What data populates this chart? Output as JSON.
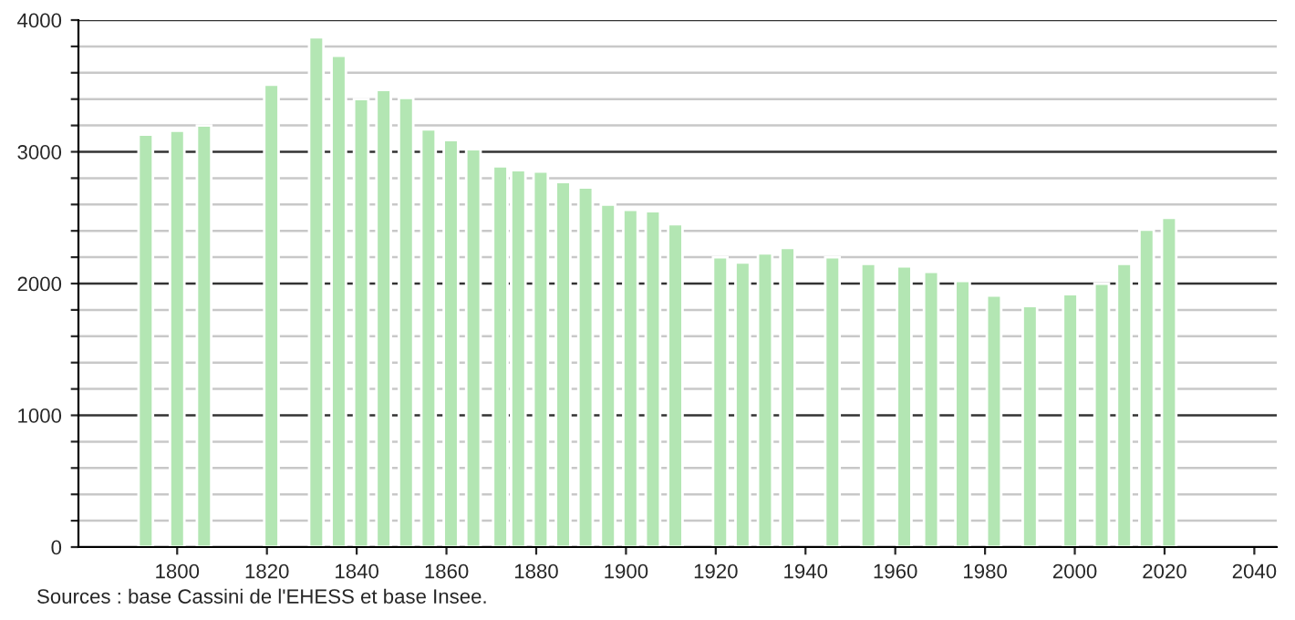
{
  "chart_data": {
    "type": "bar",
    "color": "#b3e6b3",
    "grid": "y",
    "x": [
      1793,
      1800,
      1806,
      1821,
      1831,
      1836,
      1841,
      1846,
      1851,
      1856,
      1861,
      1866,
      1872,
      1876,
      1881,
      1886,
      1891,
      1896,
      1901,
      1906,
      1911,
      1921,
      1926,
      1931,
      1936,
      1946,
      1954,
      1962,
      1968,
      1975,
      1982,
      1990,
      1999,
      2006,
      2011,
      2016,
      2021
    ],
    "values": [
      3130,
      3160,
      3200,
      3510,
      3870,
      3730,
      3400,
      3470,
      3410,
      3170,
      3090,
      3020,
      2890,
      2860,
      2850,
      2770,
      2730,
      2600,
      2560,
      2550,
      2450,
      2200,
      2160,
      2230,
      2270,
      2200,
      2150,
      2130,
      2090,
      2020,
      1910,
      1830,
      1920,
      2000,
      2150,
      2410,
      2500
    ],
    "xlim": [
      1778,
      2045
    ],
    "xticks": [
      1800,
      1820,
      1840,
      1860,
      1880,
      1900,
      1920,
      1940,
      1960,
      1980,
      2000,
      2020,
      2040
    ],
    "ylim": [
      0,
      4000
    ],
    "yticks": [
      0,
      {
        "value": 200,
        "label": null
      },
      {
        "value": 400,
        "label": null
      },
      {
        "value": 600,
        "label": null
      },
      {
        "value": 800,
        "label": null
      },
      1000,
      {
        "value": 1200,
        "label": null
      },
      {
        "value": 1400,
        "label": null
      },
      {
        "value": 1600,
        "label": null
      },
      {
        "value": 1800,
        "label": null
      },
      2000,
      {
        "value": 2200,
        "label": null
      },
      {
        "value": 2400,
        "label": null
      },
      {
        "value": 2600,
        "label": null
      },
      {
        "value": 2800,
        "label": null
      },
      3000,
      {
        "value": 3200,
        "label": null
      },
      {
        "value": 3400,
        "label": null
      },
      {
        "value": 3600,
        "label": null
      },
      {
        "value": 3800,
        "label": null
      },
      4000
    ],
    "annotations": [
      "Sources : base Cassini de l'EHESS et base Insee."
    ]
  }
}
